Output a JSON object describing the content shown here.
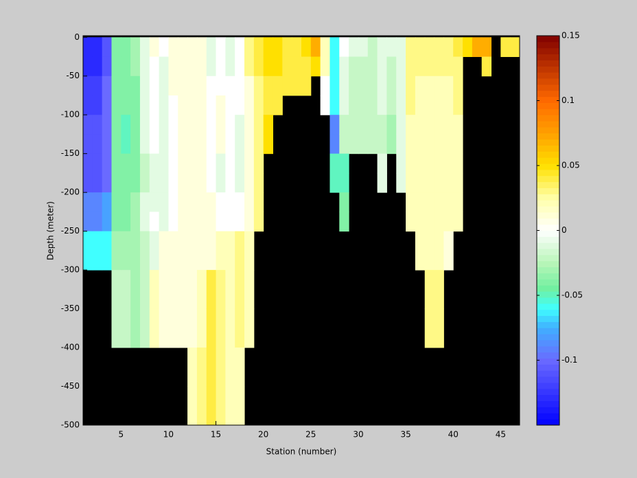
{
  "chart_data": {
    "type": "heatmap",
    "xlabel": "Station (number)",
    "ylabel": "Depth (meter)",
    "xlim": [
      1,
      47
    ],
    "ylim": [
      -500,
      2
    ],
    "xticks": [
      5,
      10,
      15,
      20,
      25,
      30,
      35,
      40,
      45
    ],
    "yticks": [
      0,
      -50,
      -100,
      -150,
      -200,
      -250,
      -300,
      -350,
      -400,
      -450,
      -500
    ],
    "x_edges": [
      1,
      2,
      3,
      4,
      5,
      6,
      7,
      8,
      9,
      10,
      11,
      12,
      13,
      14,
      15,
      16,
      17,
      18,
      19,
      20,
      21,
      22,
      23,
      24,
      25,
      26,
      27,
      28,
      29,
      30,
      31,
      32,
      33,
      34,
      35,
      36,
      37,
      38,
      39,
      40,
      41,
      42,
      43,
      44,
      45,
      46,
      47
    ],
    "y_edges": [
      0,
      -25,
      -50,
      -75,
      -100,
      -125,
      -150,
      -175,
      -200,
      -225,
      -250,
      -300,
      -350,
      -400,
      -450,
      -500
    ],
    "background": "#000000",
    "clim": [
      -0.15,
      0.15
    ],
    "cticks": [
      -0.1,
      -0.05,
      0,
      0.05,
      0.1,
      0.15
    ],
    "colormap": [
      [
        -0.15,
        "#0000ff"
      ],
      [
        -0.1,
        "#6a6aff"
      ],
      [
        -0.075,
        "#40b0ff"
      ],
      [
        -0.06,
        "#40ffff"
      ],
      [
        -0.045,
        "#70f0a0"
      ],
      [
        -0.025,
        "#b8f5b8"
      ],
      [
        0,
        "#ffffff"
      ],
      [
        0.025,
        "#ffffa8"
      ],
      [
        0.05,
        "#ffe000"
      ],
      [
        0.075,
        "#ffa000"
      ],
      [
        0.1,
        "#ff6a00"
      ],
      [
        0.15,
        "#800000"
      ]
    ],
    "z": [
      [
        -0.13,
        -0.13,
        -0.12,
        -0.12,
        -0.11,
        -0.11,
        -0.11,
        -0.11,
        -0.09,
        -0.09,
        -0.06,
        null,
        null,
        null,
        null
      ],
      [
        -0.13,
        -0.13,
        -0.12,
        -0.12,
        -0.11,
        -0.11,
        -0.11,
        -0.11,
        -0.09,
        -0.09,
        -0.06,
        null,
        null,
        null,
        null
      ],
      [
        -0.11,
        -0.11,
        -0.1,
        -0.1,
        -0.1,
        -0.1,
        -0.1,
        -0.1,
        -0.08,
        -0.08,
        -0.06,
        null,
        null,
        null,
        null
      ],
      [
        -0.04,
        -0.04,
        -0.04,
        -0.04,
        -0.04,
        -0.04,
        -0.04,
        -0.04,
        -0.04,
        -0.04,
        -0.03,
        -0.02,
        -0.02,
        null,
        null
      ],
      [
        -0.04,
        -0.04,
        -0.04,
        -0.04,
        -0.05,
        -0.05,
        -0.04,
        -0.04,
        -0.04,
        -0.04,
        -0.03,
        -0.02,
        -0.02,
        null,
        null
      ],
      [
        -0.03,
        -0.03,
        -0.04,
        -0.04,
        -0.04,
        -0.04,
        -0.04,
        -0.04,
        -0.03,
        -0.03,
        -0.03,
        -0.03,
        -0.03,
        null,
        null
      ],
      [
        -0.01,
        -0.01,
        -0.01,
        -0.01,
        -0.01,
        -0.01,
        -0.02,
        -0.02,
        -0.01,
        -0.01,
        -0.02,
        -0.02,
        -0.02,
        null,
        null
      ],
      [
        0.01,
        0,
        0,
        0,
        0,
        0,
        -0.01,
        -0.01,
        -0.01,
        0,
        -0.01,
        0.02,
        0.02,
        null,
        null
      ],
      [
        0,
        -0.01,
        -0.01,
        -0.01,
        -0.01,
        -0.01,
        -0.01,
        -0.01,
        -0.01,
        -0.01,
        0.01,
        0.01,
        0.01,
        null,
        null
      ],
      [
        0.01,
        0.01,
        0.01,
        0,
        0,
        0,
        0,
        0,
        0,
        0,
        0.01,
        0.01,
        0.01,
        null,
        null
      ],
      [
        0.01,
        0.01,
        0.01,
        0.01,
        0.01,
        0.01,
        0.01,
        0.01,
        0.01,
        0.01,
        0.01,
        0.01,
        0.01,
        null,
        null
      ],
      [
        0.01,
        0.01,
        0.01,
        0.01,
        0.01,
        0.01,
        0.01,
        0.01,
        0.01,
        0.01,
        0.01,
        0.01,
        0.01,
        0.02,
        0.02
      ],
      [
        0.01,
        0.01,
        0.01,
        0.01,
        0.01,
        0.01,
        0.01,
        0.01,
        0.01,
        0.01,
        0.01,
        0.02,
        0.02,
        0.03,
        0.03
      ],
      [
        -0.01,
        -0.01,
        0,
        0,
        0,
        0,
        0,
        0,
        0.01,
        0.01,
        0.01,
        0.04,
        0.04,
        0.04,
        0.04
      ],
      [
        0,
        0,
        0,
        0.01,
        0.01,
        0.01,
        -0.01,
        -0.01,
        0,
        0,
        0.02,
        0.03,
        0.03,
        0.03,
        0.03
      ],
      [
        -0.01,
        -0.01,
        0,
        0,
        0,
        0,
        0,
        0,
        0,
        0,
        0.02,
        0.02,
        0.02,
        0.02,
        0.02
      ],
      [
        0,
        0,
        0,
        0,
        -0.01,
        -0.01,
        -0.01,
        -0.01,
        0,
        0,
        0.03,
        0.03,
        0.03,
        0.02,
        0.02
      ],
      [
        0.03,
        0.03,
        0.01,
        0.01,
        0.01,
        0.01,
        0.01,
        0.01,
        0.01,
        0.01,
        0.02,
        0.02,
        0.02,
        null,
        null
      ],
      [
        0.04,
        0.04,
        0.03,
        0.03,
        0.03,
        0.03,
        0.03,
        0.03,
        0.03,
        0.03,
        null,
        null,
        null,
        null,
        null
      ],
      [
        0.05,
        0.05,
        0.04,
        0.04,
        0.05,
        0.05,
        null,
        null,
        null,
        null,
        null,
        null,
        null,
        null,
        null
      ],
      [
        0.05,
        0.05,
        0.04,
        0.04,
        null,
        null,
        null,
        null,
        null,
        null,
        null,
        null,
        null,
        null,
        null
      ],
      [
        0.04,
        0.04,
        0.04,
        null,
        null,
        null,
        null,
        null,
        null,
        null,
        null,
        null,
        null,
        null,
        null
      ],
      [
        0.04,
        0.04,
        0.04,
        null,
        null,
        null,
        null,
        null,
        null,
        null,
        null,
        null,
        null,
        null,
        null
      ],
      [
        0.05,
        0.04,
        0.04,
        null,
        null,
        null,
        null,
        null,
        null,
        null,
        null,
        null,
        null,
        null,
        null
      ],
      [
        0.07,
        0.05,
        null,
        null,
        null,
        null,
        null,
        null,
        null,
        null,
        null,
        null,
        null,
        null,
        null
      ],
      [
        0.02,
        0.02,
        0,
        0,
        null,
        null,
        null,
        null,
        null,
        null,
        null,
        null,
        null,
        null,
        null
      ],
      [
        -0.06,
        -0.06,
        -0.06,
        -0.06,
        -0.09,
        -0.09,
        -0.05,
        -0.05,
        null,
        null,
        null,
        null,
        null,
        null,
        null
      ],
      [
        0,
        -0.01,
        -0.01,
        -0.01,
        -0.02,
        -0.02,
        -0.05,
        -0.05,
        -0.04,
        -0.04,
        null,
        null,
        null,
        null,
        null
      ],
      [
        -0.01,
        -0.02,
        -0.02,
        -0.02,
        -0.02,
        -0.02,
        null,
        null,
        null,
        null,
        null,
        null,
        null,
        null,
        null
      ],
      [
        -0.01,
        -0.02,
        -0.02,
        -0.02,
        -0.02,
        -0.02,
        null,
        null,
        null,
        null,
        null,
        null,
        null,
        null,
        null
      ],
      [
        -0.02,
        -0.02,
        -0.02,
        -0.02,
        -0.02,
        -0.02,
        null,
        null,
        null,
        null,
        null,
        null,
        null,
        null,
        null
      ],
      [
        -0.01,
        -0.01,
        -0.01,
        -0.01,
        -0.02,
        -0.02,
        -0.01,
        -0.01,
        null,
        null,
        null,
        null,
        null,
        null,
        null
      ],
      [
        -0.01,
        -0.02,
        -0.02,
        -0.02,
        -0.03,
        -0.03,
        null,
        null,
        null,
        null,
        null,
        null,
        null,
        null,
        null
      ],
      [
        -0.01,
        -0.01,
        -0.01,
        -0.01,
        -0.01,
        -0.01,
        -0.01,
        -0.01,
        null,
        null,
        null,
        null,
        null,
        null,
        null
      ],
      [
        0.03,
        0.03,
        0.03,
        0.03,
        0.02,
        0.02,
        0.02,
        0.02,
        0.02,
        0.02,
        null,
        null,
        null,
        null,
        null
      ],
      [
        0.03,
        0.03,
        0.02,
        0.02,
        0.02,
        0.02,
        0.02,
        0.02,
        0.02,
        0.02,
        0.02,
        null,
        null,
        null,
        null
      ],
      [
        0.03,
        0.03,
        0.02,
        0.02,
        0.02,
        0.02,
        0.02,
        0.02,
        0.02,
        0.02,
        0.02,
        0.03,
        0.03,
        null,
        null
      ],
      [
        0.03,
        0.03,
        0.02,
        0.02,
        0.02,
        0.02,
        0.02,
        0.02,
        0.02,
        0.02,
        0.02,
        0.03,
        0.03,
        null,
        null
      ],
      [
        0.03,
        0.03,
        0.02,
        0.02,
        0.02,
        0.02,
        0.02,
        0.02,
        0.02,
        0.02,
        0.01,
        null,
        null,
        null,
        null
      ],
      [
        0.04,
        0.03,
        0.03,
        0.03,
        0.02,
        0.02,
        0.02,
        0.02,
        0.02,
        0.02,
        null,
        null,
        null,
        null,
        null
      ],
      [
        0.05,
        null,
        null,
        null,
        null,
        null,
        null,
        null,
        null,
        null,
        null,
        null,
        null,
        null,
        null
      ],
      [
        0.07,
        null,
        null,
        null,
        null,
        null,
        null,
        null,
        null,
        null,
        null,
        null,
        null,
        null,
        null
      ],
      [
        0.07,
        0.04,
        null,
        null,
        null,
        null,
        null,
        null,
        null,
        null,
        null,
        null,
        null,
        null,
        null
      ],
      [
        null,
        null,
        null,
        null,
        null,
        null,
        null,
        null,
        null,
        null,
        null,
        null,
        null,
        null,
        null
      ],
      [
        0.04,
        null,
        null,
        null,
        null,
        null,
        null,
        null,
        null,
        null,
        null,
        null,
        null,
        null,
        null
      ],
      [
        0.04,
        null,
        null,
        null,
        null,
        null,
        null,
        null,
        null,
        null,
        null,
        null,
        null,
        null,
        null
      ]
    ]
  }
}
